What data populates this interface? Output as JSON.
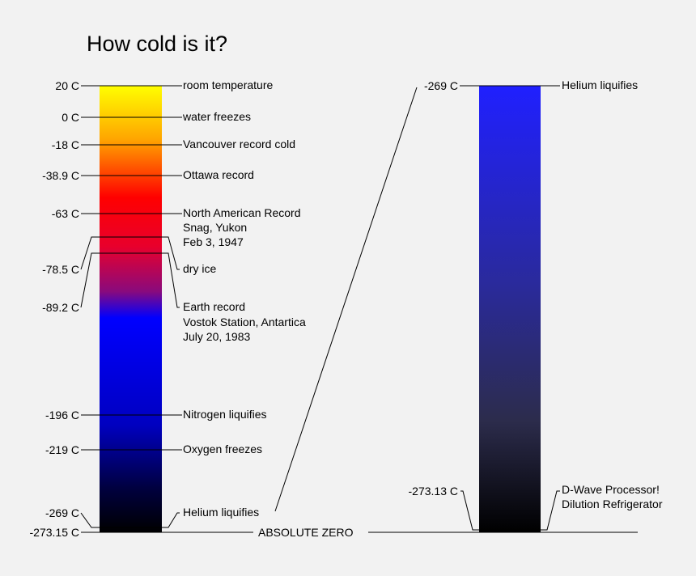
{
  "title": "How cold is it?",
  "left_scale": {
    "temperatures": {
      "room": "20 C",
      "water": "0 C",
      "vancouver": "-18 C",
      "ottawa": "-38.9 C",
      "north_america": "-63 C",
      "dry_ice": "-78.5 C",
      "earth": "-89.2 C",
      "nitrogen": "-196 C",
      "oxygen": "-219 C",
      "helium": "-269 C",
      "absolute_zero": "-273.15 C"
    },
    "labels": {
      "room": "room temperature",
      "water": "water freezes",
      "vancouver": "Vancouver record cold",
      "ottawa": "Ottawa record",
      "north_america": [
        "North American Record",
        "Snag, Yukon",
        "Feb 3, 1947"
      ],
      "dry_ice": "dry ice",
      "earth": [
        "Earth record",
        "Vostok Station, Antartica",
        "July 20, 1983"
      ],
      "nitrogen": "Nitrogen liquifies",
      "oxygen": "Oxygen freezes",
      "helium": "Helium liquifies"
    },
    "gradient_colors": [
      "#ffff00",
      "#ffa500",
      "#ff0000",
      "#e8002c",
      "#8a0a7c",
      "#0000ff",
      "#0000c0",
      "#000040",
      "#000000"
    ]
  },
  "absolute_zero_label": "ABSOLUTE ZERO",
  "right_scale": {
    "top_temp": "-269 C",
    "top_label": "Helium liquifies",
    "bottom_temp": "-273.13 C",
    "bottom_label": [
      "D-Wave Processor!",
      "Dilution Refrigerator"
    ],
    "gradient_colors": [
      "#2020ff",
      "#2a2a9a",
      "#2c2c4c",
      "#000000"
    ]
  }
}
